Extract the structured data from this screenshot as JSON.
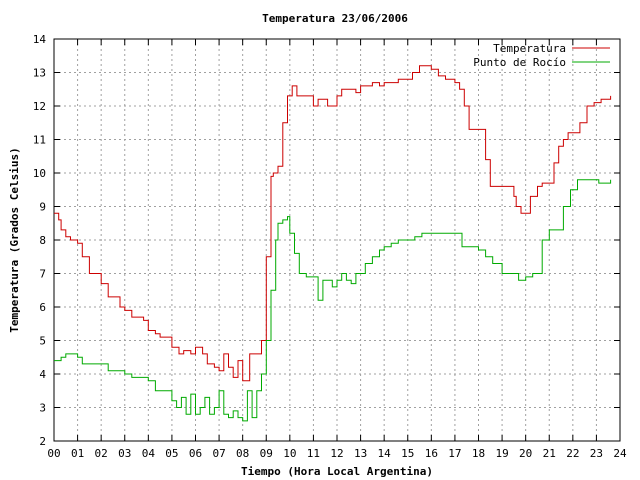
{
  "chart_data": {
    "type": "line",
    "title": "Temperatura 23/06/2006",
    "xlabel": "Tiempo (Hora Local Argentina)",
    "ylabel": "Temperatura (Grados Celsius)",
    "xlim": [
      0,
      24
    ],
    "ylim": [
      2,
      14
    ],
    "x_ticks": [
      "00",
      "01",
      "02",
      "03",
      "04",
      "05",
      "06",
      "07",
      "08",
      "09",
      "10",
      "11",
      "12",
      "13",
      "14",
      "15",
      "16",
      "17",
      "18",
      "19",
      "20",
      "21",
      "22",
      "23",
      "24"
    ],
    "y_ticks": [
      2,
      3,
      4,
      5,
      6,
      7,
      8,
      9,
      10,
      11,
      12,
      13,
      14
    ],
    "grid": true,
    "legend_position": "top-right",
    "series": [
      {
        "name": "Temperatura",
        "color": "#cc0000",
        "x": [
          0,
          0.2,
          0.3,
          0.5,
          0.7,
          1.0,
          1.2,
          1.5,
          1.8,
          2.0,
          2.3,
          2.5,
          2.8,
          3.0,
          3.3,
          3.5,
          3.8,
          4.0,
          4.3,
          4.5,
          4.8,
          5.0,
          5.3,
          5.5,
          5.8,
          6.0,
          6.3,
          6.5,
          6.8,
          7.0,
          7.2,
          7.4,
          7.6,
          7.8,
          8.0,
          8.3,
          8.6,
          8.8,
          9.0,
          9.2,
          9.3,
          9.5,
          9.7,
          9.9,
          10.1,
          10.3,
          10.5,
          10.7,
          11.0,
          11.2,
          11.4,
          11.6,
          11.8,
          12.0,
          12.2,
          12.4,
          12.6,
          12.8,
          13.0,
          13.2,
          13.5,
          13.8,
          14.0,
          14.3,
          14.6,
          14.9,
          15.2,
          15.5,
          15.8,
          16.0,
          16.3,
          16.6,
          16.9,
          17.0,
          17.2,
          17.4,
          17.6,
          17.9,
          18.1,
          18.3,
          18.5,
          18.8,
          19.0,
          19.2,
          19.5,
          19.6,
          19.8,
          20.0,
          20.2,
          20.5,
          20.7,
          21.0,
          21.2,
          21.4,
          21.6,
          21.8,
          22.0,
          22.3,
          22.6,
          22.9,
          23.2,
          23.5,
          23.6
        ],
        "y": [
          8.8,
          8.6,
          8.3,
          8.1,
          8.0,
          7.9,
          7.5,
          7.0,
          7.0,
          6.7,
          6.3,
          6.3,
          6.0,
          5.9,
          5.7,
          5.7,
          5.6,
          5.3,
          5.2,
          5.1,
          5.1,
          4.8,
          4.6,
          4.7,
          4.6,
          4.8,
          4.6,
          4.3,
          4.2,
          4.1,
          4.6,
          4.2,
          3.9,
          4.4,
          3.8,
          4.6,
          4.6,
          5.0,
          7.5,
          9.9,
          10.0,
          10.2,
          11.5,
          12.3,
          12.6,
          12.3,
          12.3,
          12.3,
          12.0,
          12.2,
          12.2,
          12.0,
          12.0,
          12.3,
          12.5,
          12.5,
          12.5,
          12.4,
          12.6,
          12.6,
          12.7,
          12.6,
          12.7,
          12.7,
          12.8,
          12.8,
          13.0,
          13.2,
          13.2,
          13.1,
          12.9,
          12.8,
          12.8,
          12.7,
          12.5,
          12.0,
          11.3,
          11.3,
          11.3,
          10.4,
          9.6,
          9.6,
          9.6,
          9.6,
          9.3,
          9.0,
          8.8,
          8.8,
          9.3,
          9.6,
          9.7,
          9.7,
          10.3,
          10.8,
          11.0,
          11.2,
          11.2,
          11.5,
          12.0,
          12.1,
          12.2,
          12.2,
          12.3
        ]
      },
      {
        "name": "Punto de Rocío",
        "color": "#00aa00",
        "x": [
          0,
          0.3,
          0.5,
          0.7,
          1.0,
          1.2,
          1.5,
          2.0,
          2.3,
          2.6,
          3.0,
          3.3,
          3.6,
          4.0,
          4.3,
          4.6,
          5.0,
          5.2,
          5.4,
          5.6,
          5.8,
          6.0,
          6.2,
          6.4,
          6.6,
          6.8,
          7.0,
          7.2,
          7.4,
          7.6,
          7.8,
          8.0,
          8.2,
          8.4,
          8.6,
          8.8,
          9.0,
          9.2,
          9.4,
          9.5,
          9.7,
          9.9,
          10.0,
          10.2,
          10.4,
          10.7,
          11.0,
          11.2,
          11.4,
          11.6,
          11.8,
          12.0,
          12.2,
          12.4,
          12.6,
          12.8,
          13.0,
          13.2,
          13.5,
          13.8,
          14.0,
          14.3,
          14.6,
          15.0,
          15.3,
          15.6,
          16.0,
          16.3,
          16.6,
          17.0,
          17.3,
          17.6,
          18.0,
          18.3,
          18.6,
          19.0,
          19.3,
          19.5,
          19.7,
          20.0,
          20.3,
          20.5,
          20.7,
          21.0,
          21.3,
          21.6,
          21.9,
          22.2,
          22.5,
          22.8,
          23.1,
          23.4,
          23.6
        ],
        "y": [
          4.4,
          4.5,
          4.6,
          4.6,
          4.5,
          4.3,
          4.3,
          4.3,
          4.1,
          4.1,
          4.0,
          3.9,
          3.9,
          3.8,
          3.5,
          3.5,
          3.2,
          3.0,
          3.3,
          2.8,
          3.4,
          2.8,
          3.0,
          3.3,
          2.8,
          3.0,
          3.5,
          2.8,
          2.7,
          2.9,
          2.7,
          2.6,
          3.5,
          2.7,
          3.5,
          4.0,
          5.0,
          6.5,
          8.0,
          8.5,
          8.6,
          8.7,
          8.2,
          7.6,
          7.0,
          6.9,
          6.9,
          6.2,
          6.8,
          6.8,
          6.6,
          6.8,
          7.0,
          6.8,
          6.7,
          7.0,
          7.0,
          7.3,
          7.5,
          7.7,
          7.8,
          7.9,
          8.0,
          8.0,
          8.1,
          8.2,
          8.2,
          8.2,
          8.2,
          8.2,
          7.8,
          7.8,
          7.7,
          7.5,
          7.3,
          7.0,
          7.0,
          7.0,
          6.8,
          6.9,
          7.0,
          7.0,
          8.0,
          8.3,
          8.3,
          9.0,
          9.5,
          9.8,
          9.8,
          9.8,
          9.7,
          9.7,
          9.8
        ]
      }
    ]
  }
}
